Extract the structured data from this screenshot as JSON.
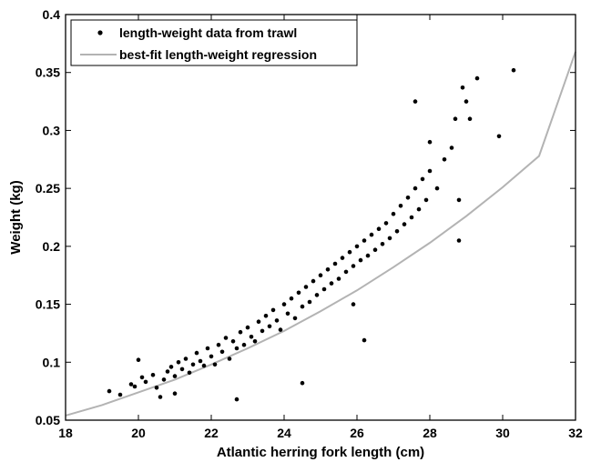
{
  "chart_data": {
    "type": "scatter",
    "xlabel": "Atlantic herring fork length (cm)",
    "ylabel": "Weight (kg)",
    "xlim": [
      18,
      32
    ],
    "ylim": [
      0.05,
      0.4
    ],
    "x_ticks": [
      "18",
      "20",
      "22",
      "24",
      "26",
      "28",
      "30",
      "32"
    ],
    "y_ticks": [
      "0.05",
      "0.1",
      "0.15",
      "0.2",
      "0.25",
      "0.3",
      "0.35",
      "0.4"
    ],
    "grid": false,
    "legend_position": "top-left",
    "series": [
      {
        "name": "length-weight data from trawl",
        "kind": "scatter",
        "color": "#000000",
        "points": [
          [
            19.2,
            0.075
          ],
          [
            19.5,
            0.072
          ],
          [
            19.8,
            0.081
          ],
          [
            19.9,
            0.079
          ],
          [
            20.0,
            0.102
          ],
          [
            20.1,
            0.087
          ],
          [
            20.2,
            0.083
          ],
          [
            20.4,
            0.089
          ],
          [
            20.5,
            0.078
          ],
          [
            20.6,
            0.07
          ],
          [
            20.7,
            0.085
          ],
          [
            20.8,
            0.092
          ],
          [
            20.9,
            0.096
          ],
          [
            21.0,
            0.088
          ],
          [
            21.0,
            0.073
          ],
          [
            21.1,
            0.1
          ],
          [
            21.2,
            0.094
          ],
          [
            21.3,
            0.103
          ],
          [
            21.4,
            0.091
          ],
          [
            21.5,
            0.098
          ],
          [
            21.6,
            0.108
          ],
          [
            21.7,
            0.101
          ],
          [
            21.8,
            0.097
          ],
          [
            21.9,
            0.112
          ],
          [
            22.0,
            0.105
          ],
          [
            22.1,
            0.098
          ],
          [
            22.2,
            0.115
          ],
          [
            22.3,
            0.109
          ],
          [
            22.4,
            0.121
          ],
          [
            22.5,
            0.103
          ],
          [
            22.6,
            0.118
          ],
          [
            22.7,
            0.112
          ],
          [
            22.8,
            0.126
          ],
          [
            22.9,
            0.115
          ],
          [
            23.0,
            0.13
          ],
          [
            23.1,
            0.122
          ],
          [
            23.2,
            0.118
          ],
          [
            23.3,
            0.135
          ],
          [
            23.4,
            0.127
          ],
          [
            23.5,
            0.14
          ],
          [
            23.6,
            0.131
          ],
          [
            23.7,
            0.145
          ],
          [
            23.8,
            0.136
          ],
          [
            23.9,
            0.128
          ],
          [
            24.0,
            0.15
          ],
          [
            24.1,
            0.142
          ],
          [
            24.2,
            0.155
          ],
          [
            24.3,
            0.138
          ],
          [
            24.4,
            0.16
          ],
          [
            24.5,
            0.148
          ],
          [
            24.6,
            0.165
          ],
          [
            24.7,
            0.152
          ],
          [
            24.8,
            0.17
          ],
          [
            24.9,
            0.158
          ],
          [
            25.0,
            0.175
          ],
          [
            25.1,
            0.163
          ],
          [
            25.2,
            0.18
          ],
          [
            25.3,
            0.168
          ],
          [
            25.4,
            0.185
          ],
          [
            25.5,
            0.172
          ],
          [
            25.6,
            0.19
          ],
          [
            25.7,
            0.178
          ],
          [
            25.8,
            0.195
          ],
          [
            25.9,
            0.183
          ],
          [
            26.0,
            0.2
          ],
          [
            26.1,
            0.188
          ],
          [
            26.2,
            0.205
          ],
          [
            26.3,
            0.192
          ],
          [
            26.4,
            0.21
          ],
          [
            26.5,
            0.197
          ],
          [
            26.6,
            0.215
          ],
          [
            26.7,
            0.202
          ],
          [
            26.8,
            0.22
          ],
          [
            26.9,
            0.207
          ],
          [
            27.0,
            0.228
          ],
          [
            27.1,
            0.213
          ],
          [
            27.2,
            0.235
          ],
          [
            27.3,
            0.219
          ],
          [
            27.4,
            0.242
          ],
          [
            27.5,
            0.225
          ],
          [
            27.6,
            0.25
          ],
          [
            27.7,
            0.232
          ],
          [
            27.8,
            0.258
          ],
          [
            27.9,
            0.24
          ],
          [
            28.0,
            0.265
          ],
          [
            28.2,
            0.25
          ],
          [
            28.4,
            0.275
          ],
          [
            28.6,
            0.285
          ],
          [
            28.7,
            0.31
          ],
          [
            28.9,
            0.337
          ],
          [
            29.0,
            0.325
          ],
          [
            29.1,
            0.31
          ],
          [
            29.3,
            0.345
          ],
          [
            29.9,
            0.295
          ],
          [
            30.3,
            0.352
          ],
          [
            27.6,
            0.325
          ],
          [
            28.0,
            0.29
          ],
          [
            28.8,
            0.24
          ],
          [
            28.8,
            0.205
          ],
          [
            22.7,
            0.068
          ],
          [
            24.5,
            0.082
          ],
          [
            26.2,
            0.119
          ],
          [
            25.9,
            0.15
          ]
        ]
      },
      {
        "name": "best-fit length-weight regression",
        "kind": "line",
        "color": "#b3b3b3",
        "x": [
          18,
          19,
          20,
          21,
          22,
          23,
          24,
          25,
          26,
          27,
          28,
          29,
          30,
          31,
          32
        ],
        "values": [
          0.054,
          0.063,
          0.074,
          0.085,
          0.098,
          0.112,
          0.127,
          0.144,
          0.162,
          0.182,
          0.203,
          0.226,
          0.251,
          0.278,
          0.368
        ]
      }
    ]
  }
}
